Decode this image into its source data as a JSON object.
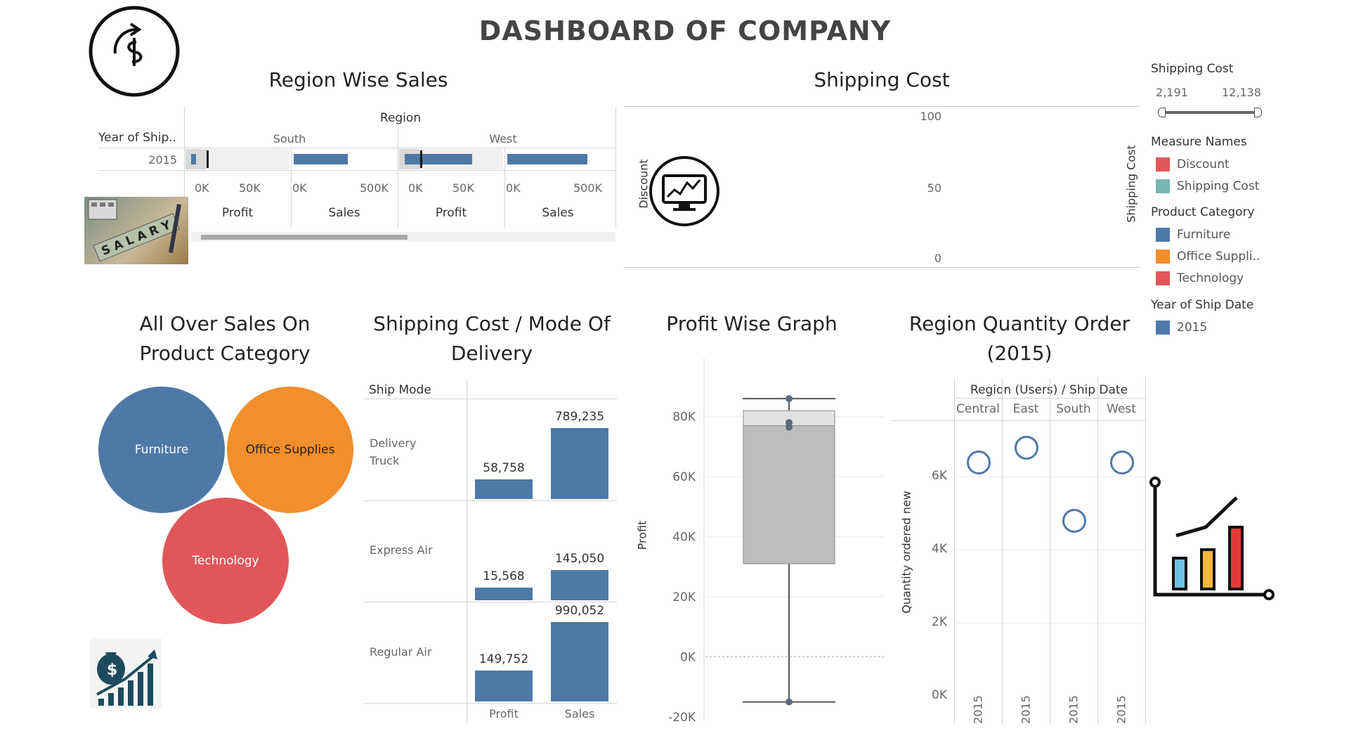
{
  "dashboard": {
    "title": "DASHBOARD OF COMPANY"
  },
  "region_sales": {
    "title": "Region Wise Sales",
    "header": "Region",
    "row_header": "Year of Ship..",
    "row_value": "2015",
    "regions": [
      "South",
      "West"
    ],
    "measures": [
      "Profit",
      "Sales",
      "Profit",
      "Sales"
    ],
    "axis_ticks": [
      [
        "0K",
        "50K"
      ],
      [
        "0K",
        "500K"
      ],
      [
        "0K",
        "50K"
      ],
      [
        "0K",
        "500K"
      ]
    ]
  },
  "shipping_cost_chart": {
    "title": "Shipping Cost",
    "left_axis_label": "Discount",
    "right_axis_label": "Shipping Cost",
    "ticks": [
      "100",
      "50",
      "0"
    ]
  },
  "filters": {
    "shipping_cost": {
      "title": "Shipping Cost",
      "min": "2,191",
      "max": "12,138"
    },
    "measure_names": {
      "title": "Measure Names",
      "items": [
        "Discount",
        "Shipping Cost"
      ],
      "colors": [
        "#e15759",
        "#76b7b2"
      ]
    },
    "product_category": {
      "title": "Product Category",
      "items": [
        "Furniture",
        "Office Suppli..",
        "Technology"
      ],
      "colors": [
        "#4e79a7",
        "#f28e2b",
        "#e15759"
      ]
    },
    "year_of_ship_date": {
      "title": "Year of Ship Date",
      "items": [
        "2015"
      ],
      "colors": [
        "#4e79a7"
      ]
    }
  },
  "product_category_bubbles": {
    "title_line1": "All Over Sales On",
    "title_line2": "Product Category",
    "bubbles": [
      {
        "label": "Furniture",
        "color": "#4e79a7"
      },
      {
        "label": "Office Supplies",
        "color": "#f28e2b"
      },
      {
        "label": "Technology",
        "color": "#e15759"
      }
    ]
  },
  "ship_mode_chart": {
    "title_line1": "Shipping Cost / Mode Of",
    "title_line2": "Delivery",
    "row_header": "Ship Mode",
    "columns": [
      "Profit",
      "Sales"
    ]
  },
  "profit_box": {
    "title": "Profit Wise Graph",
    "ylabel": "Profit",
    "ticks": [
      "80K",
      "60K",
      "40K",
      "20K",
      "0K",
      "-20K"
    ]
  },
  "region_quantity": {
    "title_line1": "Region Quantity Order",
    "title_line2": "(2015)",
    "header": "Region (Users) / Ship Date",
    "ylabel": "Quantity ordered new",
    "ticks": [
      "6K",
      "4K",
      "2K",
      "0K"
    ]
  },
  "chart_data": [
    {
      "type": "bar",
      "title": "Region Wise Sales",
      "categories": [
        "South",
        "West"
      ],
      "series": [
        {
          "name": "Profit",
          "values": [
            4000,
            55000
          ]
        },
        {
          "name": "Sales",
          "values": [
            290000,
            430000
          ]
        }
      ]
    },
    {
      "type": "bar",
      "title": "Shipping Cost / Mode Of Delivery",
      "categories": [
        "Delivery Truck",
        "Express Air",
        "Regular Air"
      ],
      "series": [
        {
          "name": "Profit",
          "values": [
            58758,
            15568,
            149752
          ],
          "labels": [
            "58,758",
            "15,568",
            "149,752"
          ]
        },
        {
          "name": "Sales",
          "values": [
            789235,
            145050,
            990052
          ],
          "labels": [
            "789,235",
            "145,050",
            "990,052"
          ]
        }
      ]
    },
    {
      "type": "box",
      "title": "Profit Wise Graph",
      "ylabel": "Profit",
      "ylim": [
        -20000,
        90000
      ],
      "whisker_low": -15000,
      "q1": 31000,
      "median": 77000,
      "q3": 82000,
      "whisker_high": 86000,
      "points": [
        86000,
        78000,
        76500,
        -15000
      ]
    },
    {
      "type": "scatter",
      "title": "Region Quantity Order (2015)",
      "ylabel": "Quantity ordered new",
      "categories": [
        "Central",
        "East",
        "South",
        "West"
      ],
      "x_labels": [
        "2015",
        "2015",
        "2015",
        "2015"
      ],
      "values": [
        6400,
        6800,
        4800,
        6400
      ],
      "ylim": [
        0,
        7500
      ]
    }
  ]
}
